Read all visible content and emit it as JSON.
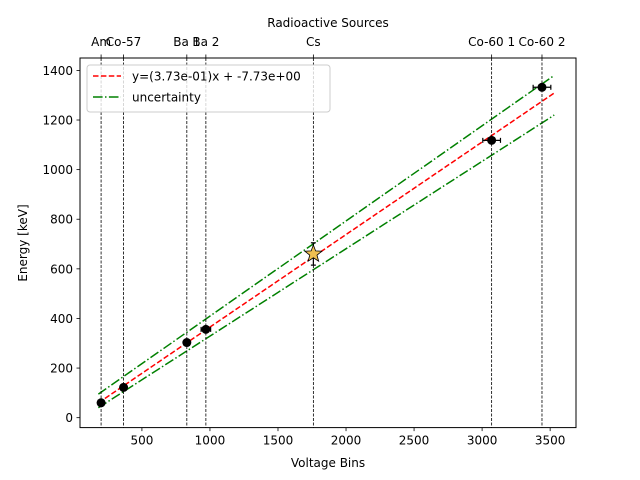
{
  "chart_data": {
    "type": "scatter",
    "title": "Radioactive Sources",
    "xlabel": "Voltage Bins",
    "ylabel": "Energy [keV]",
    "xlim": [
      45,
      3690
    ],
    "ylim": [
      -40,
      1450
    ],
    "xticks": [
      500,
      1000,
      1500,
      2000,
      2500,
      3000,
      3500
    ],
    "yticks": [
      0,
      200,
      400,
      600,
      800,
      1000,
      1200,
      1400
    ],
    "grid": false,
    "legend_position": "top-left",
    "colors": {
      "fit": "#ff0000",
      "uncertainty": "#008000",
      "points": "#000000",
      "star": "#f0c050",
      "vlines": "#000000"
    },
    "fit_line": {
      "name": "y=(3.73e-01)x + -7.73e+00",
      "slope": 0.373,
      "intercept": -7.73,
      "x_range": [
        180,
        3530
      ]
    },
    "uncertainty": {
      "name": "uncertainty",
      "upper_y": [
        95,
        1380
      ],
      "lower_y": [
        40,
        1220
      ],
      "x_range": [
        180,
        3530
      ]
    },
    "calibration_points": [
      {
        "x": 200,
        "y": 60,
        "xerr": 10,
        "yerr": 6
      },
      {
        "x": 365,
        "y": 122,
        "xerr": 15,
        "yerr": 8
      },
      {
        "x": 830,
        "y": 303,
        "xerr": 15,
        "yerr": 10
      },
      {
        "x": 970,
        "y": 356,
        "xerr": 35,
        "yerr": 10
      },
      {
        "x": 3070,
        "y": 1118,
        "xerr": 65,
        "yerr": 10
      },
      {
        "x": 3440,
        "y": 1332,
        "xerr": 65,
        "yerr": 10
      }
    ],
    "unknown_point": {
      "x": 1760,
      "y": 660,
      "xerr": 10,
      "yerr": 45
    },
    "source_lines": [
      {
        "label": "Am",
        "x": 200
      },
      {
        "label": "Co-57",
        "x": 365
      },
      {
        "label": "Ba 1",
        "x": 830
      },
      {
        "label": "Ba 2",
        "x": 970
      },
      {
        "label": "Cs",
        "x": 1760
      },
      {
        "label": "Co-60 1",
        "x": 3070
      },
      {
        "label": "Co-60 2",
        "x": 3440
      }
    ]
  }
}
